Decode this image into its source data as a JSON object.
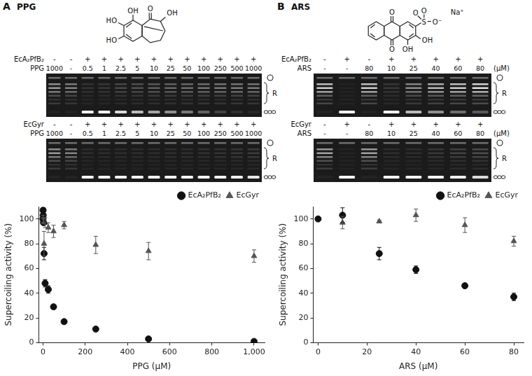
{
  "panels": [
    {
      "label": "A",
      "heading": "PPG",
      "structure": [
        "OH",
        "HO",
        "HO",
        "O",
        "OH"
      ],
      "gels": [
        {
          "enzyme": "EcA₂PfB₂",
          "enzyme_lanes": [
            "-",
            "-",
            "+",
            "+",
            "+",
            "+",
            "+",
            "+",
            "+",
            "+",
            "+",
            "+",
            "+"
          ],
          "compound": "PPG",
          "compound_lanes": [
            "1000",
            "-",
            "0.5",
            "1",
            "2.5",
            "5",
            "10",
            "25",
            "50",
            "100",
            "250",
            "500",
            "1000"
          ]
        },
        {
          "enzyme": "EcGyr",
          "enzyme_lanes": [
            "-",
            "-",
            "+",
            "+",
            "+",
            "+",
            "+",
            "+",
            "+",
            "+",
            "+",
            "+",
            "+"
          ],
          "compound": "PPG",
          "compound_lanes": [
            "1000",
            "-",
            "0.5",
            "1",
            "2.5",
            "5",
            "10",
            "25",
            "50",
            "100",
            "250",
            "500",
            "1000"
          ]
        }
      ],
      "marker_label": "R"
    },
    {
      "label": "B",
      "heading": "ARS",
      "structure": [
        "O",
        "O",
        "S",
        "O",
        "O⁻",
        "O",
        "OH",
        "OH",
        "Na⁺"
      ],
      "gels": [
        {
          "enzyme": "EcA₂PfB₂",
          "enzyme_lanes": [
            "-",
            "+",
            "-",
            "+",
            "+",
            "+",
            "+",
            "+"
          ],
          "compound": "ARS",
          "compound_lanes": [
            "-",
            "-",
            "80",
            "10",
            "25",
            "40",
            "60",
            "80"
          ],
          "unit": "(μM)"
        },
        {
          "enzyme": "EcGyr",
          "enzyme_lanes": [
            "-",
            "+",
            "-",
            "+",
            "+",
            "+",
            "+",
            "+"
          ],
          "compound": "ARS",
          "compound_lanes": [
            "-",
            "-",
            "80",
            "10",
            "25",
            "40",
            "60",
            "80"
          ],
          "unit": "(μM)"
        }
      ],
      "marker_label": "R"
    }
  ],
  "chart_data": [
    {
      "type": "scatter",
      "x_label": "PPG (μM)",
      "y_label": "Supercoiling activity (%)",
      "xlim": [
        -20,
        1050
      ],
      "xticks": [
        0,
        200,
        400,
        600,
        800,
        1000
      ],
      "ylim": [
        0,
        110
      ],
      "yticks": [
        0,
        20,
        40,
        60,
        80,
        100
      ],
      "grid": false,
      "legend": "upper right",
      "series": [
        {
          "name": "EcA₂PfB₂",
          "color": "#111111",
          "marker": "circle",
          "x": [
            0,
            0.5,
            1,
            2.5,
            5,
            10,
            25,
            50,
            100,
            250,
            500,
            1000
          ],
          "values": [
            100,
            107,
            103,
            97,
            72,
            48,
            43,
            29,
            17,
            11,
            3,
            1
          ],
          "errors": [
            0,
            2,
            3,
            2,
            5,
            3,
            3,
            1,
            1,
            1,
            1,
            1
          ]
        },
        {
          "name": "EcGyr",
          "color": "#555555",
          "marker": "triangle",
          "x": [
            0,
            0.5,
            1,
            2.5,
            5,
            10,
            25,
            50,
            100,
            250,
            500,
            1000
          ],
          "values": [
            100,
            99,
            100,
            98,
            80,
            97,
            93,
            90,
            95,
            79,
            74,
            70
          ],
          "errors": [
            0,
            2,
            3,
            2,
            10,
            4,
            4,
            5,
            3,
            7,
            7,
            5
          ]
        }
      ]
    },
    {
      "type": "scatter",
      "x_label": "ARS (μM)",
      "y_label": "Supercoiling activity (%)",
      "xlim": [
        -2,
        84
      ],
      "xticks": [
        0,
        20,
        40,
        60,
        80
      ],
      "ylim": [
        0,
        110
      ],
      "yticks": [
        0,
        20,
        40,
        60,
        80,
        100
      ],
      "grid": false,
      "legend": "upper right",
      "series": [
        {
          "name": "EcA₂PfB₂",
          "color": "#111111",
          "marker": "circle",
          "x": [
            0,
            10,
            25,
            40,
            60,
            80
          ],
          "values": [
            100,
            103,
            72,
            59,
            46,
            37
          ],
          "errors": [
            0,
            6,
            5,
            3,
            2,
            3
          ]
        },
        {
          "name": "EcGyr",
          "color": "#555555",
          "marker": "triangle",
          "x": [
            0,
            10,
            25,
            40,
            60,
            80
          ],
          "values": [
            100,
            97,
            98,
            103,
            95,
            82
          ],
          "errors": [
            0,
            5,
            1,
            5,
            6,
            4
          ]
        }
      ]
    }
  ]
}
